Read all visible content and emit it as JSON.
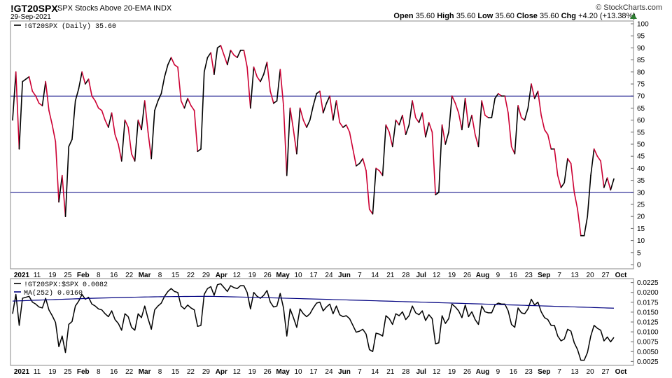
{
  "header": {
    "symbol": "!GT20SPX",
    "description": "SPX Stocks Above 20-EMA INDX",
    "date": "29-Sep-2021",
    "brand": "© StockCharts.com",
    "open_label": "Open",
    "open": "35.60",
    "high_label": "High",
    "high": "35.60",
    "low_label": "Low",
    "low": "35.60",
    "close_label": "Close",
    "close": "35.60",
    "chg_label": "Chg",
    "chg": "+4.20 (+13.38%)",
    "up_color": "#2e7d32"
  },
  "chart_data": [
    {
      "type": "line",
      "legend": "!GT20SPX (Daily) 35.60",
      "ylim": [
        0,
        100
      ],
      "y_ticks": [
        "0",
        "5",
        "10",
        "15",
        "20",
        "25",
        "30",
        "35",
        "40",
        "45",
        "50",
        "55",
        "60",
        "65",
        "70",
        "75",
        "80",
        "85",
        "90",
        "95",
        "100"
      ],
      "x_tick_labels": [
        "2021",
        "11",
        "19",
        "25",
        "Feb",
        "8",
        "16",
        "22",
        "Mar",
        "8",
        "15",
        "22",
        "29",
        "Apr",
        "12",
        "19",
        "26",
        "May",
        "10",
        "17",
        "24",
        "Jun",
        "7",
        "14",
        "21",
        "28",
        "Jul",
        "12",
        "19",
        "26",
        "Aug",
        "9",
        "16",
        "23",
        "Sep",
        "7",
        "13",
        "20",
        "27",
        "Oct"
      ],
      "x_tick_bold": [
        "2021",
        "Feb",
        "Mar",
        "Apr",
        "May",
        "Jun",
        "Jul",
        "Aug",
        "Sep",
        "Oct"
      ],
      "reference_lines": [
        70,
        30
      ],
      "line_colors": {
        "up": "#000000",
        "down": "#cc0033"
      },
      "series": [
        {
          "name": "!GT20SPX",
          "values": [
            60,
            80,
            48,
            76,
            77,
            78,
            72,
            70,
            67,
            66,
            76,
            64,
            58,
            51,
            26,
            37,
            20,
            49,
            52,
            68,
            73,
            80,
            75,
            77,
            70,
            68,
            65,
            64,
            60,
            57,
            63,
            54,
            50,
            43,
            60,
            57,
            46,
            43,
            60,
            56,
            68,
            55,
            44,
            64,
            68,
            71,
            78,
            83,
            86,
            83,
            82,
            68,
            65,
            69,
            66,
            64,
            47,
            48,
            80,
            86,
            88,
            79,
            90,
            91,
            87,
            83,
            89,
            87,
            86,
            89,
            89,
            82,
            65,
            82,
            78,
            76,
            79,
            84,
            72,
            67,
            68,
            81,
            66,
            37,
            65,
            56,
            46,
            65,
            60,
            57,
            60,
            66,
            71,
            72,
            63,
            67,
            70,
            60,
            68,
            59,
            57,
            58,
            55,
            48,
            41,
            42,
            44,
            39,
            23,
            21,
            40,
            39,
            37,
            58,
            55,
            49,
            60,
            58,
            62,
            54,
            58,
            68,
            61,
            59,
            63,
            53,
            59,
            55,
            29,
            30,
            58,
            50,
            55,
            70,
            67,
            63,
            56,
            69,
            57,
            62,
            54,
            49,
            68,
            62,
            61,
            61,
            69,
            71,
            70,
            70,
            63,
            49,
            46,
            66,
            61,
            60,
            65,
            75,
            69,
            72,
            62,
            56,
            54,
            48,
            48,
            37,
            32,
            34,
            44,
            42,
            30,
            23,
            12,
            12,
            20,
            37,
            48,
            45,
            43,
            32,
            36,
            31,
            35.6
          ]
        }
      ]
    },
    {
      "type": "line",
      "legend_ratio": "!GT20SPX:$SPX 0.0082",
      "legend_ma": "MA(252) 0.0160",
      "ylim": [
        0.0015,
        0.0235
      ],
      "y_ticks": [
        "0.0025",
        "0.0050",
        "0.0075",
        "0.0100",
        "0.0125",
        "0.0150",
        "0.0175",
        "0.0200",
        "0.0225"
      ],
      "x_tick_labels": [
        "2021",
        "11",
        "19",
        "25",
        "Feb",
        "8",
        "16",
        "22",
        "Mar",
        "8",
        "15",
        "22",
        "29",
        "Apr",
        "12",
        "19",
        "26",
        "May",
        "10",
        "17",
        "24",
        "Jun",
        "7",
        "14",
        "21",
        "28",
        "Jul",
        "12",
        "19",
        "26",
        "Aug",
        "9",
        "16",
        "23",
        "Sep",
        "7",
        "13",
        "20",
        "27",
        "Oct"
      ],
      "series": [
        {
          "name": "!GT20SPX:$SPX",
          "color": "#000000"
        },
        {
          "name": "MA(252)",
          "color": "#000080",
          "values_start": 0.0178,
          "values_peak": 0.019,
          "values_end": 0.016
        }
      ]
    }
  ]
}
